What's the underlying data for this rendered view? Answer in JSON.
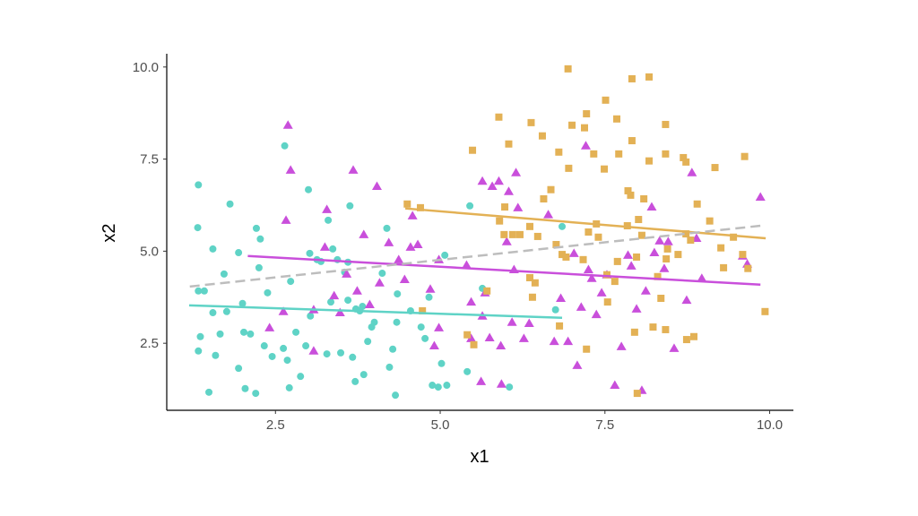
{
  "chart_data": {
    "type": "scatter",
    "title": "",
    "xlabel": "x1",
    "ylabel": "x2",
    "xlim": [
      0.85,
      10.36
    ],
    "ylim": [
      0.68,
      10.36
    ],
    "grid": false,
    "legend": "none",
    "xticks": [
      "2.5",
      "5.0",
      "7.5",
      "10.0"
    ],
    "yticks": [
      "2.5",
      "5.0",
      "7.5",
      "10.0"
    ],
    "series": [
      {
        "marker": "circle",
        "color": "#5fd3c6",
        "points": [
          [
            1.33,
            6.8
          ],
          [
            1.32,
            5.64
          ],
          [
            1.33,
            3.92
          ],
          [
            1.42,
            3.92
          ],
          [
            1.33,
            2.29
          ],
          [
            1.36,
            2.68
          ],
          [
            1.49,
            1.17
          ],
          [
            1.55,
            5.06
          ],
          [
            1.55,
            3.33
          ],
          [
            1.59,
            2.17
          ],
          [
            1.66,
            2.75
          ],
          [
            1.72,
            4.38
          ],
          [
            1.81,
            6.28
          ],
          [
            1.76,
            3.36
          ],
          [
            1.94,
            4.96
          ],
          [
            1.94,
            1.82
          ],
          [
            2.0,
            3.58
          ],
          [
            2.02,
            2.8
          ],
          [
            2.04,
            1.27
          ],
          [
            2.12,
            2.75
          ],
          [
            2.2,
            1.14
          ],
          [
            2.21,
            5.62
          ],
          [
            2.25,
            4.55
          ],
          [
            2.27,
            5.33
          ],
          [
            2.33,
            2.43
          ],
          [
            2.38,
            3.87
          ],
          [
            2.45,
            2.14
          ],
          [
            2.62,
            2.36
          ],
          [
            2.64,
            7.86
          ],
          [
            2.68,
            2.04
          ],
          [
            2.71,
            1.29
          ],
          [
            2.73,
            4.18
          ],
          [
            2.81,
            2.8
          ],
          [
            2.88,
            1.6
          ],
          [
            2.96,
            2.43
          ],
          [
            3.0,
            6.67
          ],
          [
            3.02,
            4.94
          ],
          [
            3.03,
            3.24
          ],
          [
            3.13,
            4.77
          ],
          [
            3.19,
            4.72
          ],
          [
            3.28,
            2.21
          ],
          [
            3.3,
            5.84
          ],
          [
            3.34,
            3.62
          ],
          [
            3.37,
            5.06
          ],
          [
            3.44,
            4.77
          ],
          [
            3.49,
            2.24
          ],
          [
            3.55,
            4.43
          ],
          [
            3.6,
            4.7
          ],
          [
            3.6,
            3.67
          ],
          [
            3.63,
            6.23
          ],
          [
            3.67,
            2.12
          ],
          [
            3.71,
            1.46
          ],
          [
            3.72,
            3.43
          ],
          [
            3.78,
            3.38
          ],
          [
            3.82,
            3.5
          ],
          [
            3.84,
            1.65
          ],
          [
            3.9,
            2.55
          ],
          [
            3.96,
            2.94
          ],
          [
            4.0,
            3.07
          ],
          [
            4.12,
            4.4
          ],
          [
            4.19,
            5.62
          ],
          [
            4.23,
            1.85
          ],
          [
            4.28,
            2.34
          ],
          [
            4.32,
            1.09
          ],
          [
            4.34,
            3.07
          ],
          [
            4.35,
            3.84
          ],
          [
            4.55,
            3.38
          ],
          [
            4.71,
            2.94
          ],
          [
            4.77,
            2.63
          ],
          [
            4.83,
            3.75
          ],
          [
            4.88,
            1.36
          ],
          [
            4.97,
            1.31
          ],
          [
            5.02,
            1.95
          ],
          [
            5.07,
            4.89
          ],
          [
            5.1,
            1.36
          ],
          [
            5.41,
            1.73
          ],
          [
            5.45,
            6.23
          ],
          [
            5.64,
            3.99
          ],
          [
            6.05,
            1.31
          ],
          [
            6.75,
            3.41
          ],
          [
            6.85,
            5.67
          ]
        ],
        "fit": [
          [
            1.19,
            3.53
          ],
          [
            6.85,
            3.19
          ]
        ]
      },
      {
        "marker": "triangle",
        "color": "#c94fdb",
        "points": [
          [
            2.69,
            8.42
          ],
          [
            2.73,
            7.2
          ],
          [
            2.66,
            5.84
          ],
          [
            2.41,
            2.92
          ],
          [
            2.62,
            3.36
          ],
          [
            3.08,
            3.41
          ],
          [
            3.08,
            2.29
          ],
          [
            3.25,
            5.11
          ],
          [
            3.28,
            6.13
          ],
          [
            3.39,
            3.79
          ],
          [
            3.48,
            3.33
          ],
          [
            3.58,
            4.38
          ],
          [
            3.68,
            7.2
          ],
          [
            3.74,
            3.92
          ],
          [
            3.84,
            5.45
          ],
          [
            3.93,
            3.55
          ],
          [
            4.04,
            6.76
          ],
          [
            4.08,
            4.14
          ],
          [
            4.22,
            5.23
          ],
          [
            4.37,
            4.77
          ],
          [
            4.46,
            4.23
          ],
          [
            4.55,
            5.11
          ],
          [
            4.58,
            5.96
          ],
          [
            4.66,
            5.18
          ],
          [
            4.85,
            3.97
          ],
          [
            4.91,
            2.43
          ],
          [
            4.98,
            2.92
          ],
          [
            4.98,
            4.77
          ],
          [
            5.4,
            4.62
          ],
          [
            5.47,
            3.62
          ],
          [
            5.47,
            2.63
          ],
          [
            5.62,
            1.46
          ],
          [
            5.64,
            3.24
          ],
          [
            5.64,
            6.9
          ],
          [
            5.68,
            3.87
          ],
          [
            5.75,
            2.65
          ],
          [
            5.79,
            6.76
          ],
          [
            5.89,
            6.9
          ],
          [
            5.92,
            2.43
          ],
          [
            5.93,
            1.39
          ],
          [
            6.01,
            5.26
          ],
          [
            6.04,
            6.62
          ],
          [
            6.09,
            3.07
          ],
          [
            6.12,
            4.5
          ],
          [
            6.15,
            7.13
          ],
          [
            6.18,
            6.18
          ],
          [
            6.27,
            2.63
          ],
          [
            6.35,
            3.04
          ],
          [
            6.64,
            5.99
          ],
          [
            6.73,
            2.55
          ],
          [
            6.83,
            3.72
          ],
          [
            6.94,
            2.55
          ],
          [
            7.03,
            4.94
          ],
          [
            7.08,
            1.9
          ],
          [
            7.14,
            3.48
          ],
          [
            7.21,
            7.86
          ],
          [
            7.25,
            4.5
          ],
          [
            7.3,
            4.26
          ],
          [
            7.37,
            3.28
          ],
          [
            7.45,
            3.87
          ],
          [
            7.53,
            4.36
          ],
          [
            7.65,
            1.36
          ],
          [
            7.75,
            2.41
          ],
          [
            7.85,
            4.89
          ],
          [
            7.9,
            4.6
          ],
          [
            7.98,
            3.43
          ],
          [
            8.06,
            1.22
          ],
          [
            8.12,
            3.92
          ],
          [
            8.21,
            6.2
          ],
          [
            8.25,
            4.96
          ],
          [
            8.33,
            5.28
          ],
          [
            8.4,
            4.53
          ],
          [
            8.46,
            5.26
          ],
          [
            8.55,
            2.36
          ],
          [
            8.74,
            3.67
          ],
          [
            8.82,
            7.13
          ],
          [
            8.89,
            5.35
          ],
          [
            8.97,
            4.26
          ],
          [
            9.59,
            4.87
          ],
          [
            9.66,
            4.65
          ],
          [
            9.86,
            6.47
          ]
        ],
        "fit": [
          [
            2.08,
            4.87
          ],
          [
            9.86,
            4.09
          ]
        ]
      },
      {
        "marker": "square",
        "color": "#e3b155",
        "points": [
          [
            6.94,
            9.95
          ],
          [
            5.89,
            8.64
          ],
          [
            5.49,
            7.74
          ],
          [
            6.04,
            7.91
          ],
          [
            6.38,
            8.49
          ],
          [
            6.55,
            8.13
          ],
          [
            6.8,
            7.69
          ],
          [
            6.95,
            7.25
          ],
          [
            7.0,
            8.42
          ],
          [
            7.22,
            8.73
          ],
          [
            7.19,
            8.35
          ],
          [
            7.33,
            7.64
          ],
          [
            7.51,
            9.1
          ],
          [
            7.68,
            8.59
          ],
          [
            7.49,
            7.23
          ],
          [
            7.71,
            7.64
          ],
          [
            7.91,
            9.68
          ],
          [
            8.17,
            9.73
          ],
          [
            7.91,
            8.0
          ],
          [
            8.17,
            7.45
          ],
          [
            8.42,
            8.44
          ],
          [
            8.42,
            7.64
          ],
          [
            8.69,
            7.54
          ],
          [
            8.73,
            7.42
          ],
          [
            9.17,
            7.27
          ],
          [
            9.62,
            7.57
          ],
          [
            4.5,
            6.28
          ],
          [
            4.7,
            6.18
          ],
          [
            5.9,
            5.82
          ],
          [
            5.98,
            6.2
          ],
          [
            5.97,
            5.45
          ],
          [
            6.1,
            5.45
          ],
          [
            6.21,
            5.45
          ],
          [
            6.36,
            5.67
          ],
          [
            6.57,
            6.42
          ],
          [
            6.68,
            6.67
          ],
          [
            6.76,
            5.18
          ],
          [
            6.85,
            4.91
          ],
          [
            6.91,
            4.84
          ],
          [
            6.4,
            3.75
          ],
          [
            6.44,
            4.14
          ],
          [
            7.37,
            5.74
          ],
          [
            7.25,
            5.52
          ],
          [
            7.17,
            4.77
          ],
          [
            7.4,
            5.38
          ],
          [
            7.53,
            4.36
          ],
          [
            7.54,
            3.62
          ],
          [
            7.65,
            4.18
          ],
          [
            7.69,
            4.72
          ],
          [
            7.84,
            5.69
          ],
          [
            7.85,
            6.64
          ],
          [
            7.89,
            6.52
          ],
          [
            8.01,
            5.86
          ],
          [
            7.98,
            4.84
          ],
          [
            8.06,
            5.43
          ],
          [
            8.09,
            6.42
          ],
          [
            8.3,
            4.31
          ],
          [
            8.35,
            3.72
          ],
          [
            8.43,
            4.79
          ],
          [
            8.45,
            5.06
          ],
          [
            8.61,
            4.91
          ],
          [
            8.73,
            5.47
          ],
          [
            8.8,
            5.3
          ],
          [
            8.9,
            6.28
          ],
          [
            9.09,
            5.82
          ],
          [
            9.26,
            5.09
          ],
          [
            9.3,
            4.55
          ],
          [
            9.45,
            5.38
          ],
          [
            9.59,
            4.91
          ],
          [
            9.67,
            4.53
          ],
          [
            9.93,
            3.36
          ],
          [
            8.23,
            2.94
          ],
          [
            8.42,
            2.87
          ],
          [
            8.74,
            2.6
          ],
          [
            8.85,
            2.68
          ],
          [
            7.95,
            2.8
          ],
          [
            7.99,
            1.14
          ],
          [
            7.22,
            2.34
          ],
          [
            6.81,
            2.97
          ],
          [
            5.51,
            2.46
          ],
          [
            5.41,
            2.73
          ],
          [
            4.73,
            3.38
          ],
          [
            5.71,
            3.92
          ],
          [
            6.36,
            4.28
          ],
          [
            6.48,
            5.4
          ]
        ],
        "fit": [
          [
            4.47,
            6.16
          ],
          [
            9.94,
            5.35
          ]
        ]
      }
    ],
    "overall_fit": {
      "style": "dashed",
      "color": "#bdbdbd",
      "points": [
        [
          1.2,
          4.04
        ],
        [
          9.86,
          5.69
        ]
      ]
    }
  }
}
